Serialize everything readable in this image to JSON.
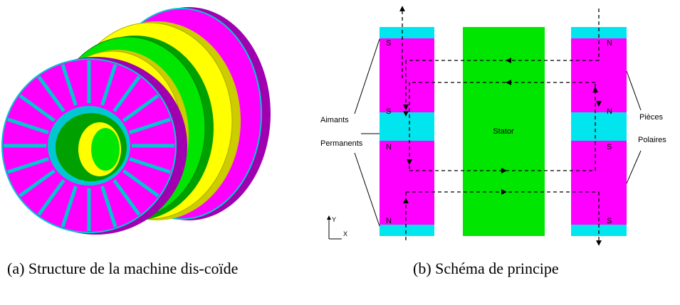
{
  "figure_a": {
    "caption_prefix": "(a)",
    "caption_text": "Structure de la machine dis-coïde"
  },
  "figure_b": {
    "caption_prefix": "(b)",
    "caption_text": "Schéma de principe",
    "stator_label": "Stator",
    "left_label_line1": "Aimants",
    "left_label_line2": "Permanents",
    "right_label_line1": "Pièces",
    "right_label_line2": "Polaires",
    "axis_y": "Y",
    "axis_x": "X",
    "left_poles": [
      "S",
      "S",
      "N",
      "N"
    ],
    "right_poles": [
      "N",
      "N",
      "S",
      "S"
    ]
  },
  "colors": {
    "magenta": "#ff00ff",
    "cyan": "#00e5ee",
    "green": "#00e600",
    "yellow": "#ffff00",
    "purple": "#a000b0",
    "dark_green": "#00a000"
  }
}
